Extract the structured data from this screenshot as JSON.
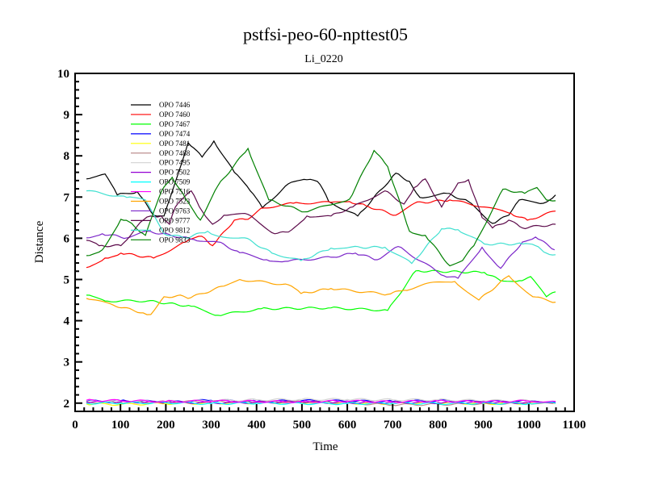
{
  "chart_data": {
    "type": "line",
    "title": "pstfsi-peo-60-npttest05",
    "subtitle": "Li_0220",
    "xlabel": "Time",
    "ylabel": "Distance",
    "xlim": [
      0,
      1100
    ],
    "ylim": [
      1.8,
      10
    ],
    "xticks": [
      0,
      100,
      200,
      300,
      400,
      500,
      600,
      700,
      800,
      900,
      1000,
      1100
    ],
    "yticks": [
      2,
      3,
      4,
      5,
      6,
      7,
      8,
      9,
      10
    ],
    "legend_position": "top-left",
    "series": [
      {
        "name": "OPO 7446",
        "color": "#000000",
        "points": [
          [
            25,
            7.44
          ],
          [
            66,
            7.56
          ],
          [
            93,
            7.05
          ],
          [
            137,
            7.13
          ],
          [
            173,
            6.56
          ],
          [
            196,
            6.54
          ],
          [
            249,
            8.32
          ],
          [
            280,
            7.97
          ],
          [
            306,
            8.36
          ],
          [
            351,
            7.6
          ],
          [
            386,
            7.15
          ],
          [
            413,
            6.74
          ],
          [
            470,
            7.32
          ],
          [
            511,
            7.42
          ],
          [
            534,
            7.38
          ],
          [
            546,
            7.19
          ],
          [
            559,
            6.89
          ],
          [
            623,
            6.54
          ],
          [
            707,
            7.58
          ],
          [
            737,
            7.38
          ],
          [
            760,
            6.99
          ],
          [
            819,
            7.09
          ],
          [
            867,
            6.89
          ],
          [
            920,
            6.36
          ],
          [
            956,
            6.56
          ],
          [
            979,
            6.93
          ],
          [
            1032,
            6.85
          ],
          [
            1059,
            7.05
          ]
        ]
      },
      {
        "name": "OPO 7460",
        "color": "#ff0000",
        "points": [
          [
            25,
            5.29
          ],
          [
            66,
            5.52
          ],
          [
            101,
            5.64
          ],
          [
            173,
            5.52
          ],
          [
            244,
            5.91
          ],
          [
            279,
            6.05
          ],
          [
            303,
            5.82
          ],
          [
            351,
            6.44
          ],
          [
            381,
            6.46
          ],
          [
            410,
            6.73
          ],
          [
            481,
            6.85
          ],
          [
            564,
            6.87
          ],
          [
            605,
            6.89
          ],
          [
            641,
            6.79
          ],
          [
            707,
            6.56
          ],
          [
            748,
            6.85
          ],
          [
            826,
            6.93
          ],
          [
            902,
            6.76
          ],
          [
            961,
            6.6
          ],
          [
            997,
            6.44
          ],
          [
            1059,
            6.66
          ]
        ]
      },
      {
        "name": "OPO 7467",
        "color": "#00ff00",
        "points": [
          [
            25,
            4.62
          ],
          [
            66,
            4.48
          ],
          [
            160,
            4.48
          ],
          [
            256,
            4.35
          ],
          [
            315,
            4.13
          ],
          [
            410,
            4.29
          ],
          [
            564,
            4.31
          ],
          [
            689,
            4.25
          ],
          [
            751,
            5.21
          ],
          [
            902,
            5.17
          ],
          [
            938,
            4.97
          ],
          [
            979,
            4.97
          ],
          [
            1004,
            5.07
          ],
          [
            1039,
            4.58
          ],
          [
            1059,
            4.7
          ]
        ]
      },
      {
        "name": "OPO 7474",
        "color": "#0000ff",
        "points": [
          [
            25,
            2.05
          ],
          [
            100,
            2.06
          ],
          [
            200,
            2.03
          ],
          [
            300,
            2.07
          ],
          [
            400,
            2.04
          ],
          [
            500,
            2.06
          ],
          [
            600,
            2.05
          ],
          [
            700,
            2.04
          ],
          [
            800,
            2.06
          ],
          [
            900,
            2.04
          ],
          [
            1000,
            2.05
          ],
          [
            1059,
            2.04
          ]
        ]
      },
      {
        "name": "OPO 7481",
        "color": "#ffff00",
        "points": [
          [
            25,
            1.98
          ],
          [
            100,
            1.97
          ],
          [
            200,
            1.99
          ],
          [
            300,
            2.0
          ],
          [
            400,
            2.01
          ],
          [
            500,
            2.02
          ],
          [
            600,
            2.0
          ],
          [
            700,
            1.99
          ],
          [
            800,
            2.01
          ],
          [
            900,
            1.99
          ],
          [
            1000,
            2.0
          ],
          [
            1059,
            2.0
          ]
        ]
      },
      {
        "name": "OPO 7488",
        "color": "#bc8f8f",
        "points": [
          [
            25,
            2.03
          ],
          [
            100,
            2.02
          ],
          [
            200,
            2.03
          ],
          [
            300,
            2.04
          ],
          [
            400,
            2.02
          ],
          [
            500,
            2.03
          ],
          [
            600,
            2.0
          ],
          [
            700,
            1.96
          ],
          [
            800,
            1.97
          ],
          [
            900,
            1.99
          ],
          [
            1000,
            2.0
          ],
          [
            1059,
            1.99
          ]
        ]
      },
      {
        "name": "OPO 7495",
        "color": "#d3d3d3",
        "points": [
          [
            25,
            2.06
          ],
          [
            100,
            2.05
          ],
          [
            200,
            2.04
          ],
          [
            300,
            2.06
          ],
          [
            400,
            2.08
          ],
          [
            500,
            2.09
          ],
          [
            600,
            2.09
          ],
          [
            700,
            2.08
          ],
          [
            800,
            2.08
          ],
          [
            900,
            2.06
          ],
          [
            1000,
            2.06
          ],
          [
            1059,
            2.05
          ]
        ]
      },
      {
        "name": "OPO 7502",
        "color": "#9400d3",
        "points": [
          [
            25,
            2.02
          ],
          [
            100,
            2.03
          ],
          [
            200,
            2.02
          ],
          [
            300,
            2.01
          ],
          [
            400,
            2.02
          ],
          [
            500,
            2.03
          ],
          [
            600,
            2.01
          ],
          [
            700,
            2.02
          ],
          [
            800,
            2.01
          ],
          [
            900,
            2.02
          ],
          [
            1000,
            2.01
          ],
          [
            1059,
            2.02
          ]
        ]
      },
      {
        "name": "OPO 7509",
        "color": "#00ffff",
        "points": [
          [
            25,
            2.0
          ],
          [
            100,
            2.0
          ],
          [
            200,
            2.01
          ],
          [
            300,
            1.99
          ],
          [
            400,
            2.0
          ],
          [
            500,
            1.99
          ],
          [
            600,
            1.99
          ],
          [
            700,
            2.0
          ],
          [
            800,
            1.99
          ],
          [
            900,
            2.0
          ],
          [
            1000,
            1.99
          ],
          [
            1059,
            2.0
          ]
        ]
      },
      {
        "name": "OPO 7516",
        "color": "#ff00ff",
        "points": [
          [
            25,
            2.07
          ],
          [
            100,
            2.06
          ],
          [
            200,
            2.04
          ],
          [
            300,
            2.05
          ],
          [
            400,
            2.04
          ],
          [
            500,
            2.03
          ],
          [
            600,
            2.05
          ],
          [
            700,
            2.03
          ],
          [
            800,
            2.05
          ],
          [
            900,
            2.03
          ],
          [
            1000,
            2.05
          ],
          [
            1059,
            2.04
          ]
        ]
      },
      {
        "name": "OPO 7523",
        "color": "#ffa500",
        "points": [
          [
            25,
            4.54
          ],
          [
            84,
            4.38
          ],
          [
            150,
            4.19
          ],
          [
            167,
            4.15
          ],
          [
            196,
            4.58
          ],
          [
            238,
            4.6
          ],
          [
            249,
            4.54
          ],
          [
            328,
            4.84
          ],
          [
            363,
            5.0
          ],
          [
            470,
            4.87
          ],
          [
            498,
            4.66
          ],
          [
            564,
            4.78
          ],
          [
            689,
            4.64
          ],
          [
            725,
            4.74
          ],
          [
            796,
            4.94
          ],
          [
            837,
            4.95
          ],
          [
            890,
            4.5
          ],
          [
            956,
            5.09
          ],
          [
            1009,
            4.58
          ],
          [
            1059,
            4.45
          ]
        ]
      },
      {
        "name": "OPO 9763",
        "color": "#7b26c9",
        "points": [
          [
            25,
            6.01
          ],
          [
            60,
            6.11
          ],
          [
            114,
            6.01
          ],
          [
            160,
            6.17
          ],
          [
            262,
            5.97
          ],
          [
            315,
            5.91
          ],
          [
            363,
            5.65
          ],
          [
            422,
            5.48
          ],
          [
            463,
            5.44
          ],
          [
            564,
            5.54
          ],
          [
            618,
            5.64
          ],
          [
            666,
            5.48
          ],
          [
            712,
            5.8
          ],
          [
            813,
            5.09
          ],
          [
            844,
            5.03
          ],
          [
            897,
            5.78
          ],
          [
            938,
            5.27
          ],
          [
            986,
            5.91
          ],
          [
            1015,
            6.03
          ],
          [
            1057,
            5.72
          ]
        ]
      },
      {
        "name": "OPO 9777",
        "color": "#5c0a4a",
        "points": [
          [
            25,
            5.95
          ],
          [
            53,
            5.82
          ],
          [
            101,
            5.82
          ],
          [
            150,
            6.44
          ],
          [
            167,
            6.54
          ],
          [
            190,
            6.54
          ],
          [
            208,
            6.34
          ],
          [
            221,
            6.76
          ],
          [
            256,
            7.15
          ],
          [
            280,
            6.66
          ],
          [
            303,
            6.34
          ],
          [
            328,
            6.56
          ],
          [
            381,
            6.58
          ],
          [
            440,
            6.11
          ],
          [
            470,
            6.15
          ],
          [
            511,
            6.54
          ],
          [
            564,
            6.54
          ],
          [
            612,
            6.76
          ],
          [
            683,
            7.15
          ],
          [
            725,
            6.83
          ],
          [
            748,
            7.23
          ],
          [
            772,
            7.44
          ],
          [
            808,
            6.76
          ],
          [
            844,
            7.34
          ],
          [
            867,
            7.42
          ],
          [
            897,
            6.5
          ],
          [
            920,
            6.25
          ],
          [
            956,
            6.44
          ],
          [
            986,
            6.25
          ],
          [
            1059,
            6.34
          ]
        ]
      },
      {
        "name": "OPO 9812",
        "color": "#40e0d0",
        "points": [
          [
            25,
            7.15
          ],
          [
            114,
            6.99
          ],
          [
            155,
            6.93
          ],
          [
            196,
            6.11
          ],
          [
            244,
            6.01
          ],
          [
            292,
            6.17
          ],
          [
            315,
            6.05
          ],
          [
            374,
            6.01
          ],
          [
            434,
            5.64
          ],
          [
            498,
            5.46
          ],
          [
            564,
            5.76
          ],
          [
            605,
            5.78
          ],
          [
            683,
            5.78
          ],
          [
            742,
            5.39
          ],
          [
            808,
            6.23
          ],
          [
            844,
            6.21
          ],
          [
            902,
            5.86
          ],
          [
            986,
            5.86
          ],
          [
            1015,
            5.82
          ],
          [
            1039,
            5.64
          ],
          [
            1059,
            5.6
          ]
        ]
      },
      {
        "name": "OPO 9833",
        "color": "#008000",
        "points": [
          [
            25,
            5.58
          ],
          [
            60,
            5.72
          ],
          [
            101,
            6.46
          ],
          [
            119,
            6.4
          ],
          [
            155,
            6.07
          ],
          [
            190,
            7.13
          ],
          [
            214,
            7.48
          ],
          [
            244,
            6.95
          ],
          [
            276,
            6.44
          ],
          [
            315,
            7.28
          ],
          [
            381,
            8.18
          ],
          [
            427,
            6.93
          ],
          [
            506,
            6.64
          ],
          [
            564,
            6.81
          ],
          [
            605,
            6.95
          ],
          [
            659,
            8.13
          ],
          [
            689,
            7.74
          ],
          [
            737,
            6.17
          ],
          [
            772,
            6.07
          ],
          [
            826,
            5.33
          ],
          [
            854,
            5.46
          ],
          [
            879,
            5.82
          ],
          [
            943,
            7.19
          ],
          [
            991,
            7.09
          ],
          [
            1018,
            7.23
          ],
          [
            1039,
            6.93
          ],
          [
            1059,
            6.91
          ]
        ]
      }
    ]
  }
}
